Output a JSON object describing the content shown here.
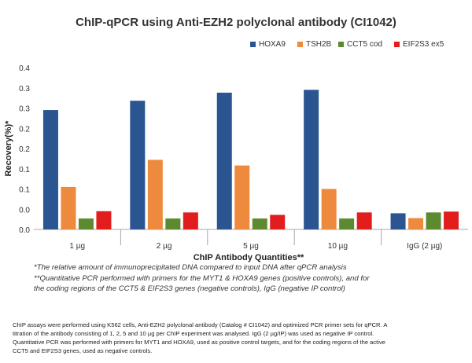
{
  "chart_data": {
    "type": "bar",
    "title": "ChIP-qPCR using Anti-EZH2 polyclonal antibody (CI1042)",
    "xlabel": "ChIP Antibody Quantities**",
    "ylabel": "Recovery(%)*",
    "categories": [
      "1 µg",
      "2 µg",
      "5 µg",
      "10 µg",
      "IgG (2 µg)"
    ],
    "series": [
      {
        "name": "HOXA9",
        "color": "#2b5591",
        "values": [
          0.295,
          0.318,
          0.338,
          0.345,
          0.04
        ]
      },
      {
        "name": "TSH2B",
        "color": "#ed8a3d",
        "values": [
          0.105,
          0.172,
          0.158,
          0.1,
          0.028
        ]
      },
      {
        "name": "CCT5 cod",
        "color": "#5d8a30",
        "values": [
          0.027,
          0.027,
          0.027,
          0.027,
          0.042
        ]
      },
      {
        "name": "EIF2S3 ex5",
        "color": "#e11d1d",
        "values": [
          0.045,
          0.042,
          0.036,
          0.042,
          0.044
        ]
      }
    ],
    "ylim": [
      0,
      0.4
    ],
    "yticks": [
      "0.0",
      "0.0",
      "0.1",
      "0.1",
      "0.2",
      "0.2",
      "0.3",
      "0.3",
      "0.4"
    ],
    "grid": false,
    "legend_position": "top-right"
  },
  "footnotes": [
    "*The relative amount of immunoprecipitated DNA compared to input DNA after qPCR analysis",
    "**Quantitative PCR performed with primers for the MYT1 & HOXA9 genes (positive controls), and for",
    "the coding regions of the CCT5 & EIF2S3 genes (negative controls), IgG (negative IP control)"
  ],
  "caption": [
    "ChIP assays were performed using K562 cells, Anti-EZH2 polyclonal antibody (Catalog # CI1042) and optimized PCR primer sets for qPCR. A",
    "titration of the antibody consisting of 1, 2, 5 and 10 µg per ChIP experiment was analysed. IgG (2 µg/IP) was used as negative IP control.",
    "Quantitative PCR was performed with primers for MYT1 and HOXA9, used as positive control targets, and for the coding regions of the active",
    "CCT5 and EIF2S3 genes, used as negative controls."
  ]
}
